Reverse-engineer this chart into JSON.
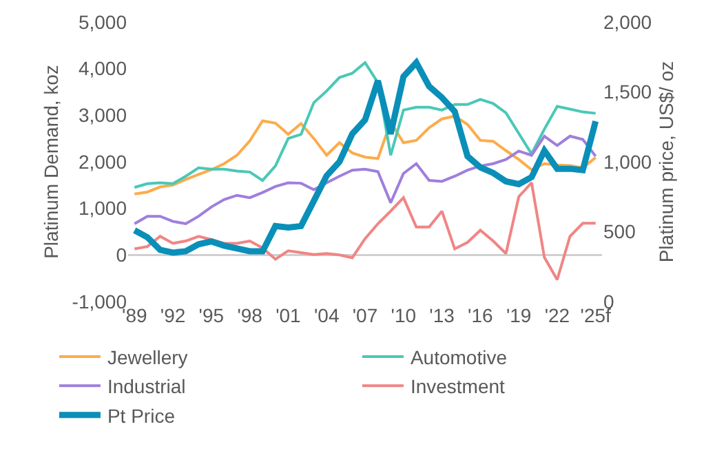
{
  "chart_data": {
    "type": "line",
    "ylabel": "Platinum Demand, koz",
    "y2label": "Platinum price, US$/ oz",
    "categories": [
      "'89",
      null,
      null,
      "'92",
      null,
      null,
      "'95",
      null,
      null,
      "'98",
      null,
      null,
      "'01",
      null,
      null,
      "'04",
      null,
      null,
      "'07",
      null,
      null,
      "'10",
      null,
      null,
      "'13",
      null,
      null,
      "'16",
      null,
      null,
      "'19",
      null,
      null,
      "'22",
      null,
      null,
      "'25f"
    ],
    "series": [
      {
        "name": "Jewellery",
        "color": "#fcac4c",
        "values": [
          1310,
          1350,
          1460,
          1500,
          1620,
          1730,
          1830,
          1960,
          2140,
          2450,
          2880,
          2830,
          2590,
          2820,
          2500,
          2140,
          2410,
          2190,
          2100,
          2070,
          2850,
          2410,
          2460,
          2730,
          2920,
          2980,
          2800,
          2460,
          2440,
          2240,
          2050,
          1830,
          1960,
          1930,
          1920,
          1870,
          2090
        ]
      },
      {
        "name": "Automotive",
        "color": "#4ac8b6",
        "values": [
          1450,
          1530,
          1550,
          1530,
          1690,
          1870,
          1840,
          1840,
          1800,
          1780,
          1600,
          1910,
          2500,
          2590,
          3270,
          3520,
          3810,
          3900,
          4130,
          3700,
          2140,
          3110,
          3170,
          3170,
          3110,
          3230,
          3230,
          3340,
          3250,
          3050,
          2610,
          2170,
          2700,
          3190,
          3130,
          3070,
          3040
        ]
      },
      {
        "name": "Industrial",
        "color": "#9e7fdc",
        "values": [
          670,
          830,
          830,
          720,
          670,
          830,
          1030,
          1190,
          1280,
          1230,
          1340,
          1470,
          1550,
          1540,
          1400,
          1550,
          1690,
          1820,
          1840,
          1790,
          1120,
          1750,
          1960,
          1600,
          1580,
          1690,
          1820,
          1910,
          1960,
          2050,
          2230,
          2140,
          2550,
          2350,
          2550,
          2480,
          2120
        ]
      },
      {
        "name": "Investment",
        "color": "#f08585",
        "values": [
          130,
          180,
          400,
          250,
          300,
          400,
          330,
          250,
          250,
          300,
          150,
          -90,
          90,
          50,
          10,
          30,
          0,
          -60,
          350,
          670,
          940,
          1230,
          600,
          600,
          940,
          130,
          270,
          530,
          300,
          30,
          1250,
          1550,
          -50,
          -530,
          400,
          680,
          680
        ]
      },
      {
        "name": "Pt Price",
        "color": "#0a8fb8",
        "axis": "y2",
        "values": [
          510,
          460,
          370,
          350,
          360,
          410,
          430,
          400,
          380,
          360,
          360,
          540,
          530,
          540,
          720,
          900,
          1000,
          1200,
          1300,
          1580,
          1200,
          1610,
          1710,
          1540,
          1460,
          1360,
          1040,
          960,
          920,
          860,
          840,
          890,
          1080,
          950,
          950,
          940,
          1290
        ]
      }
    ],
    "ylim": [
      -1000,
      5000
    ],
    "yticks": [
      {
        "value": -1000,
        "label": "-1,000"
      },
      {
        "value": 0,
        "label": "0"
      },
      {
        "value": 1000,
        "label": "1,000"
      },
      {
        "value": 2000,
        "label": "2,000"
      },
      {
        "value": 3000,
        "label": "3,000"
      },
      {
        "value": 4000,
        "label": "4,000"
      },
      {
        "value": 5000,
        "label": "5,000"
      }
    ],
    "y2lim": [
      0,
      2000
    ],
    "y2ticks": [
      {
        "value": 0,
        "label": "0"
      },
      {
        "value": 500,
        "label": "500"
      },
      {
        "value": 1000,
        "label": "1,000"
      },
      {
        "value": 1500,
        "label": "1,500"
      },
      {
        "value": 2000,
        "label": "2,000"
      }
    ],
    "legend": "bottom",
    "line_style": "solid"
  }
}
